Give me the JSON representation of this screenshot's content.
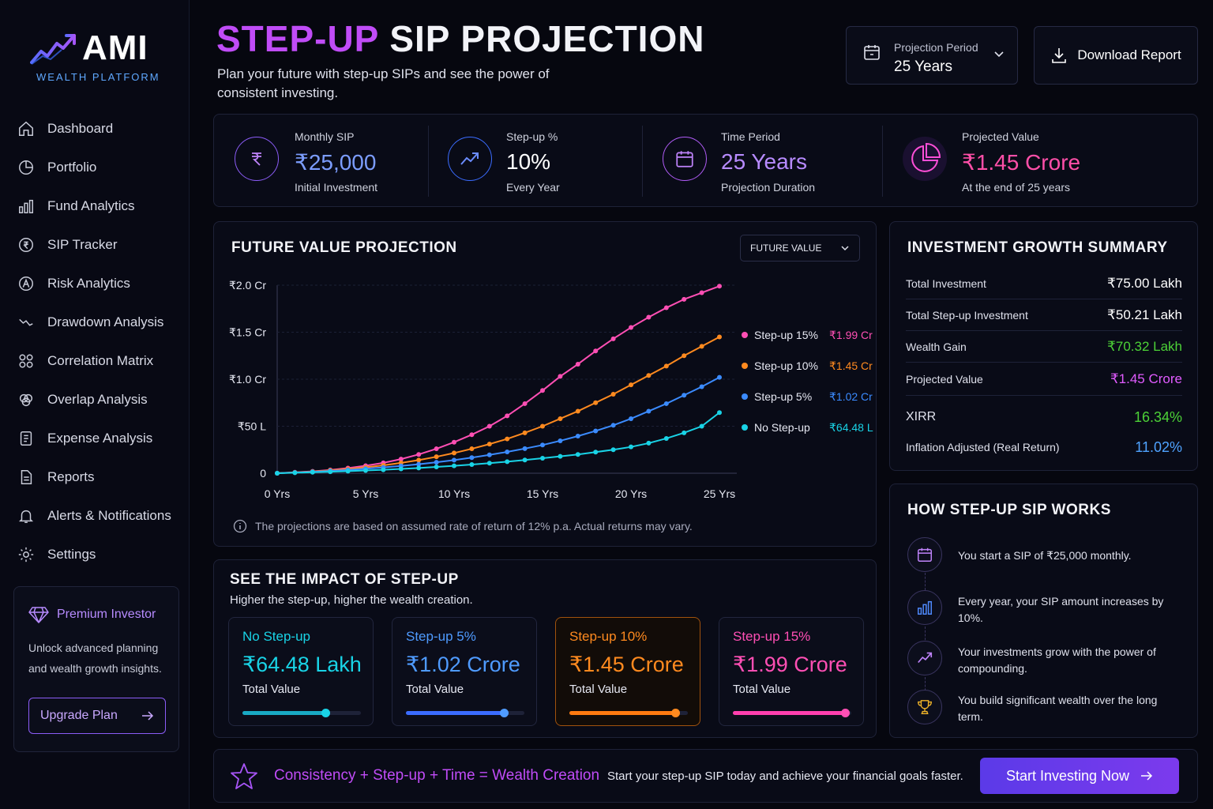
{
  "brand": {
    "name": "AMI",
    "subtitle": "WEALTH PLATFORM"
  },
  "sidebar": {
    "items": [
      {
        "label": "Dashboard",
        "icon": "home-icon"
      },
      {
        "label": "Portfolio",
        "icon": "pie-chart-icon"
      },
      {
        "label": "Fund Analytics",
        "icon": "bar-chart-icon"
      },
      {
        "label": "SIP Tracker",
        "icon": "sip-icon"
      },
      {
        "label": "Risk Analytics",
        "icon": "risk-icon"
      },
      {
        "label": "Drawdown Analysis",
        "icon": "drawdown-icon"
      },
      {
        "label": "Correlation Matrix",
        "icon": "grid-circles-icon"
      },
      {
        "label": "Overlap Analysis",
        "icon": "overlap-icon"
      },
      {
        "label": "Expense Analysis",
        "icon": "receipt-icon"
      },
      {
        "label": "Reports",
        "icon": "document-icon"
      },
      {
        "label": "Alerts & Notifications",
        "icon": "bell-icon"
      },
      {
        "label": "Settings",
        "icon": "gear-icon"
      }
    ],
    "premium": {
      "title": "Premium Investor",
      "desc": "Unlock advanced planning and wealth growth insights.",
      "button": "Upgrade Plan"
    }
  },
  "header": {
    "title_accent": "STEP-UP",
    "title_rest": " SIP PROJECTION",
    "subtitle": "Plan your future with step-up SIPs and see the power of consistent investing.",
    "period_label": "Projection Period",
    "period_value": "25 Years",
    "download": "Download Report"
  },
  "stats": [
    {
      "label": "Monthly SIP",
      "value": "₹25,000",
      "sub": "Initial Investment",
      "color": "#7c9dff"
    },
    {
      "label": "Step-up %",
      "value": "10%",
      "sub": "Every Year",
      "color": "#ffffff"
    },
    {
      "label": "Time Period",
      "value": "25 Years",
      "sub": "Projection Duration",
      "color": "#b78bff"
    },
    {
      "label": "Projected Value",
      "value": "₹1.45 Crore",
      "sub": "At the end of 25 years",
      "color": "#ff4fa8"
    }
  ],
  "projection": {
    "title": "FUTURE VALUE PROJECTION",
    "select": "FUTURE VALUE",
    "note": "The projections are based on assumed rate of return of 12% p.a. Actual returns may vary."
  },
  "chart_data": {
    "type": "line",
    "x": [
      0,
      1,
      2,
      3,
      4,
      5,
      6,
      7,
      8,
      9,
      10,
      11,
      12,
      13,
      14,
      15,
      16,
      17,
      18,
      19,
      20,
      21,
      22,
      23,
      24,
      25
    ],
    "x_ticks": [
      "0 Yrs",
      "5 Yrs",
      "10 Yrs",
      "15 Yrs",
      "20 Yrs",
      "25 Yrs"
    ],
    "y_ticks": [
      "₹2.0 Cr",
      "₹1.5 Cr",
      "₹1.0 Cr",
      "₹50 L",
      "0"
    ],
    "ylim": [
      0,
      2.0
    ],
    "series": [
      {
        "name": "Step-up 15%",
        "end_label": "₹1.99 Cr",
        "color": "#ff4fb4",
        "values": [
          0,
          0.01,
          0.02,
          0.035,
          0.055,
          0.08,
          0.11,
          0.15,
          0.2,
          0.26,
          0.33,
          0.41,
          0.5,
          0.61,
          0.74,
          0.88,
          1.03,
          1.16,
          1.3,
          1.43,
          1.55,
          1.66,
          1.76,
          1.85,
          1.92,
          1.99
        ]
      },
      {
        "name": "Step-up 10%",
        "end_label": "₹1.45 Cr",
        "color": "#ff8a1f",
        "values": [
          0,
          0.008,
          0.018,
          0.03,
          0.045,
          0.063,
          0.084,
          0.11,
          0.14,
          0.175,
          0.215,
          0.26,
          0.31,
          0.365,
          0.43,
          0.5,
          0.58,
          0.66,
          0.75,
          0.84,
          0.94,
          1.04,
          1.14,
          1.25,
          1.35,
          1.45
        ]
      },
      {
        "name": "Step-up 5%",
        "end_label": "₹1.02 Cr",
        "color": "#3b8bff",
        "values": [
          0,
          0.007,
          0.015,
          0.024,
          0.035,
          0.048,
          0.062,
          0.078,
          0.096,
          0.117,
          0.14,
          0.166,
          0.195,
          0.227,
          0.262,
          0.3,
          0.345,
          0.395,
          0.45,
          0.51,
          0.58,
          0.66,
          0.74,
          0.83,
          0.92,
          1.02
        ]
      },
      {
        "name": "No Step-up",
        "end_label": "₹64.48 L",
        "color": "#19d3e6",
        "values": [
          0,
          0.005,
          0.01,
          0.016,
          0.022,
          0.029,
          0.037,
          0.046,
          0.056,
          0.067,
          0.079,
          0.092,
          0.107,
          0.123,
          0.141,
          0.16,
          0.18,
          0.2,
          0.225,
          0.25,
          0.28,
          0.32,
          0.37,
          0.43,
          0.5,
          0.6448
        ]
      }
    ]
  },
  "summary": {
    "title": "INVESTMENT GROWTH SUMMARY",
    "rows": [
      {
        "k": "Total Investment",
        "v": "₹75.00 Lakh",
        "color": "#ffffff"
      },
      {
        "k": "Total Step-up Investment",
        "v": "₹50.21 Lakh",
        "color": "#ffffff"
      },
      {
        "k": "Wealth Gain",
        "v": "₹70.32 Lakh",
        "color": "#4cd137"
      },
      {
        "k": "Projected Value",
        "v": "₹1.45 Crore",
        "color": "#e15bff"
      }
    ],
    "xirr_label": "XIRR",
    "xirr_value": "16.34%",
    "real_label": "Inflation Adjusted (Real Return)",
    "real_value": "11.02%"
  },
  "how": {
    "title": "HOW STEP-UP SIP WORKS",
    "steps": [
      {
        "text": "You start a SIP of ₹25,000 monthly.",
        "icon": "calendar-icon"
      },
      {
        "text": "Every year, your SIP amount increases by 10%.",
        "icon": "bar-chart-icon"
      },
      {
        "text": "Your investments grow with the power of compounding.",
        "icon": "trend-up-icon"
      },
      {
        "text": "You build significant wealth over the long term.",
        "icon": "trophy-icon"
      }
    ]
  },
  "impact": {
    "title": "SEE THE IMPACT OF STEP-UP",
    "subtitle": "Higher the step-up, higher the wealth creation.",
    "cards": [
      {
        "name": "No Step-up",
        "value": "₹64.48 Lakh",
        "label": "Total Value",
        "color": "#19d3e6",
        "level": 0.7
      },
      {
        "name": "Step-up 5%",
        "value": "₹1.02 Crore",
        "label": "Total Value",
        "color": "#3b8bff",
        "level": 0.83
      },
      {
        "name": "Step-up 10%",
        "value": "₹1.45 Crore",
        "label": "Total Value",
        "color": "#ff8a1f",
        "level": 0.9
      },
      {
        "name": "Step-up 15%",
        "value": "₹1.99 Crore",
        "label": "Total Value",
        "color": "#ff4fb4",
        "level": 0.95
      }
    ]
  },
  "banner": {
    "title": "Consistency + Step-up + Time = Wealth Creation",
    "text": "Start your step-up SIP today and achieve your financial goals faster.",
    "cta": "Start Investing Now"
  }
}
